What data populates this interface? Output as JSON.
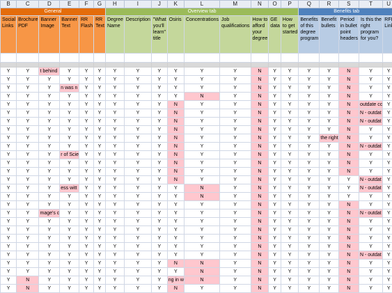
{
  "columns": [
    "B",
    "C",
    "D",
    "E",
    "F",
    "G",
    "H",
    "I",
    "J",
    "K",
    "L",
    "M",
    "N",
    "O",
    "P",
    "Q",
    "R",
    "S",
    "T",
    "U"
  ],
  "groups": [
    {
      "label": "General",
      "span": 6,
      "color": "orange"
    },
    {
      "label": "Overview tab",
      "span": 9,
      "color": "green"
    },
    {
      "label": "Benefits tab",
      "span": 5,
      "color": "blue"
    }
  ],
  "fields": [
    "Social Links",
    "Brochure PDF",
    "Banner Image",
    "Banner Text",
    "RR Flash",
    "RR Text",
    "Degree Name",
    "Description",
    "\"What you'll learn\" title",
    "Osiris",
    "Concentrations",
    "Job qualifications",
    "How to afford your degree",
    "GE data",
    "How to get started",
    "Benefits of this degree program",
    "Benefit bullets",
    "Period in bullet point headers",
    "Is this the right program for you?",
    "RFI Link"
  ],
  "data_rows": [
    [
      "Y",
      "Y",
      "t behind",
      "Y",
      "Y",
      "Y",
      "Y",
      "Y",
      "Y",
      "Y",
      "Y",
      "Y",
      "N",
      "Y",
      "Y",
      "Y",
      "Y",
      "N",
      "Y",
      "Y"
    ],
    [
      "Y",
      "Y",
      "Y",
      "Y",
      "Y",
      "Y",
      "Y",
      "Y",
      "Y",
      "Y",
      "Y",
      "Y",
      "N",
      "Y",
      "Y",
      "Y",
      "Y",
      "N",
      "Y",
      "Y"
    ],
    [
      "Y",
      "Y",
      "Y",
      "n was n",
      "Y",
      "Y",
      "Y",
      "Y",
      "Y",
      "Y",
      "Y",
      "Y",
      "N",
      "Y",
      "Y",
      "Y",
      "Y",
      "N",
      "Y",
      "Y"
    ],
    [
      "Y",
      "Y",
      "Y",
      "Y",
      "Y",
      "Y",
      "Y",
      "Y",
      "Y",
      "Y",
      "N",
      "Y",
      "N",
      "Y",
      "Y",
      "Y",
      "Y",
      "N",
      "Y",
      "Y"
    ],
    [
      "Y",
      "Y",
      "Y",
      "Y",
      "Y",
      "Y",
      "Y",
      "Y",
      "Y",
      "N",
      "Y",
      "Y",
      "N",
      "Y",
      "Y",
      "Y",
      "Y",
      "N",
      "outdate cc",
      "Y"
    ],
    [
      "Y",
      "Y",
      "Y",
      "Y",
      "Y",
      "Y",
      "Y",
      "Y",
      "Y",
      "N",
      "Y",
      "Y",
      "N",
      "Y",
      "Y",
      "Y",
      "Y",
      "N",
      "N - outdat",
      "Y"
    ],
    [
      "Y",
      "Y",
      "Y",
      "Y",
      "Y",
      "Y",
      "Y",
      "Y",
      "Y",
      "N",
      "Y",
      "Y",
      "N",
      "Y",
      "Y",
      "Y",
      "Y",
      "N",
      "N - outdat",
      "Y"
    ],
    [
      "Y",
      "Y",
      "Y",
      "Y",
      "Y",
      "Y",
      "Y",
      "Y",
      "Y",
      "N",
      "Y",
      "Y",
      "N",
      "Y",
      "Y",
      "Y",
      "Y",
      "N",
      "Y",
      "Y"
    ],
    [
      "Y",
      "Y",
      "Y",
      "Y",
      "Y",
      "Y",
      "Y",
      "Y",
      "Y",
      "N",
      "Y",
      "Y",
      "N",
      "Y",
      "Y",
      "Y",
      "the right",
      "N",
      "Y",
      "Y"
    ],
    [
      "Y",
      "Y",
      "Y",
      "Y",
      "Y",
      "Y",
      "Y",
      "Y",
      "Y",
      "N",
      "Y",
      "Y",
      "N",
      "Y",
      "Y",
      "Y",
      "Y",
      "N",
      "N - outdat",
      "Y"
    ],
    [
      "Y",
      "Y",
      "Y",
      "r of Scie",
      "Y",
      "Y",
      "Y",
      "Y",
      "Y",
      "N",
      "Y",
      "Y",
      "N",
      "Y",
      "Y",
      "Y",
      "Y",
      "N",
      "Y",
      "Y"
    ],
    [
      "Y",
      "Y",
      "Y",
      "Y",
      "Y",
      "Y",
      "Y",
      "Y",
      "Y",
      "N",
      "Y",
      "Y",
      "N",
      "Y",
      "Y",
      "Y",
      "Y",
      "N",
      "Y",
      "Y"
    ],
    [
      "Y",
      "Y",
      "Y",
      "Y",
      "Y",
      "Y",
      "Y",
      "Y",
      "Y",
      "N",
      "Y",
      "Y",
      "N",
      "Y",
      "Y",
      "Y",
      "Y",
      "N",
      "Y",
      "Y"
    ],
    [
      "Y",
      "Y",
      "Y",
      "Y",
      "Y",
      "Y",
      "Y",
      "Y",
      "Y",
      "N",
      "Y",
      "Y",
      "N",
      "Y",
      "Y",
      "Y",
      "Y",
      "Y",
      "N - outdat",
      "Y"
    ],
    [
      "Y",
      "Y",
      "Y",
      "ess witt",
      "Y",
      "Y",
      "Y",
      "Y",
      "Y",
      "Y",
      "N",
      "Y",
      "N",
      "Y",
      "Y",
      "Y",
      "Y",
      "Y",
      "N - outdat",
      "Y"
    ],
    [
      "Y",
      "Y",
      "Y",
      "Y",
      "Y",
      "Y",
      "Y",
      "Y",
      "Y",
      "Y",
      "N",
      "Y",
      "N",
      "Y",
      "Y",
      "Y",
      "Y",
      "Y",
      "Y",
      "Y"
    ],
    [
      "Y",
      "Y",
      "Y",
      "Y",
      "Y",
      "Y",
      "Y",
      "Y",
      "Y",
      "Y",
      "Y",
      "Y",
      "N",
      "Y",
      "Y",
      "Y",
      "Y",
      "N",
      "Y",
      "Y"
    ],
    [
      "Y",
      "Y",
      "mage's c",
      "Y",
      "Y",
      "Y",
      "Y",
      "Y",
      "Y",
      "Y",
      "Y",
      "Y",
      "N",
      "Y",
      "Y",
      "Y",
      "Y",
      "N",
      "N - outdat",
      "Y"
    ],
    [
      "Y",
      "Y",
      "Y",
      "Y",
      "Y",
      "Y",
      "Y",
      "Y",
      "Y",
      "Y",
      "Y",
      "Y",
      "N",
      "Y",
      "Y",
      "Y",
      "Y",
      "N",
      "Y",
      "Y"
    ],
    [
      "Y",
      "Y",
      "Y",
      "Y",
      "Y",
      "Y",
      "Y",
      "Y",
      "Y",
      "Y",
      "Y",
      "Y",
      "N",
      "Y",
      "Y",
      "Y",
      "Y",
      "N",
      "Y",
      "Y"
    ],
    [
      "Y",
      "Y",
      "Y",
      "Y",
      "Y",
      "Y",
      "Y",
      "Y",
      "Y",
      "Y",
      "Y",
      "Y",
      "N",
      "Y",
      "Y",
      "Y",
      "Y",
      "N",
      "Y",
      "Y"
    ],
    [
      "Y",
      "Y",
      "Y",
      "Y",
      "Y",
      "Y",
      "Y",
      "Y",
      "Y",
      "Y",
      "Y",
      "Y",
      "N",
      "Y",
      "Y",
      "Y",
      "Y",
      "N",
      "Y",
      "Y"
    ],
    [
      "Y",
      "Y",
      "Y",
      "Y",
      "Y",
      "Y",
      "Y",
      "Y",
      "Y",
      "Y",
      "Y",
      "Y",
      "N",
      "Y",
      "Y",
      "Y",
      "Y",
      "N",
      "N - outdat",
      "Y"
    ],
    [
      "Y",
      "Y",
      "Y",
      "Y",
      "Y",
      "Y",
      "Y",
      "Y",
      "Y",
      "N",
      "N",
      "Y",
      "N",
      "Y",
      "Y",
      "Y",
      "Y",
      "N",
      "Y",
      "Y"
    ],
    [
      "Y",
      "Y",
      "Y",
      "Y",
      "Y",
      "Y",
      "Y",
      "Y",
      "Y",
      "Y",
      "N",
      "Y",
      "N",
      "Y",
      "Y",
      "Y",
      "Y",
      "N",
      "Y",
      "Y"
    ],
    [
      "Y",
      "N",
      "Y",
      "Y",
      "Y",
      "Y",
      "Y",
      "Y",
      "Y",
      "ng in w",
      "N",
      "Y",
      "N",
      "Y",
      "Y",
      "Y",
      "Y",
      "N",
      "Y",
      "Y"
    ],
    [
      "Y",
      "N",
      "Y",
      "Y",
      "Y",
      "Y",
      "Y",
      "Y",
      "Y",
      "N",
      "Y",
      "Y",
      "N",
      "Y",
      "Y",
      "Y",
      "Y",
      "N",
      "Y",
      "Y"
    ]
  ],
  "colors": {
    "general_header": "#e46c0a",
    "general_fill": "#f79646",
    "overview_header": "#9bbb59",
    "overview_fill": "#c4d79b",
    "benefits_header": "#4f81bd",
    "benefits_fill": "#b8cce4",
    "flag_cell": "#ffc7ce",
    "gridline": "#d0d7e5"
  }
}
